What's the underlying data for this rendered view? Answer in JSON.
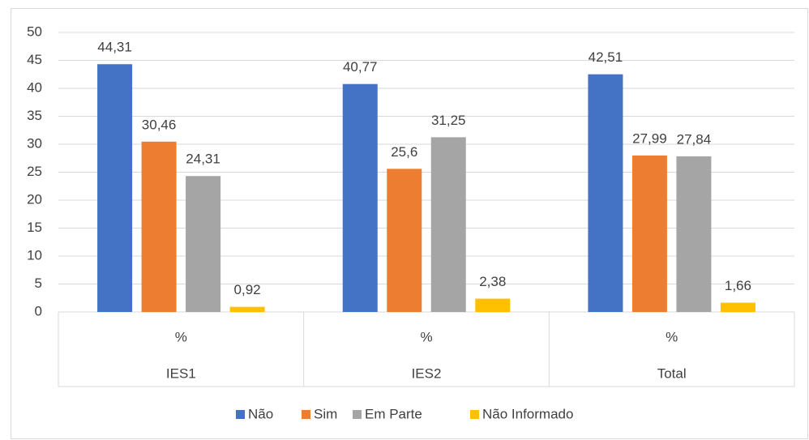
{
  "chart_data": {
    "type": "bar",
    "categories": [
      "IES1",
      "IES2",
      "Total"
    ],
    "subcategories": [
      "%",
      "%",
      "%"
    ],
    "series": [
      {
        "name": "Não",
        "color": "#4472c4",
        "values": [
          44.31,
          40.77,
          42.51
        ],
        "value_labels": [
          "44,31",
          "40,77",
          "42,51"
        ]
      },
      {
        "name": "Sim",
        "color": "#ed7d31",
        "values": [
          30.46,
          25.6,
          27.99
        ],
        "value_labels": [
          "30,46",
          "25,6",
          "27,99"
        ]
      },
      {
        "name": "Em Parte",
        "color": "#a5a5a5",
        "values": [
          24.31,
          31.25,
          27.84
        ],
        "value_labels": [
          "24,31",
          "31,25",
          "27,84"
        ]
      },
      {
        "name": "Não Informado",
        "color": "#ffc000",
        "values": [
          0.92,
          2.38,
          1.66
        ],
        "value_labels": [
          "0,92",
          "2,38",
          "1,66"
        ]
      }
    ],
    "ylim": [
      0,
      50
    ],
    "yticks": [
      0,
      5,
      10,
      15,
      20,
      25,
      30,
      35,
      40,
      45,
      50
    ],
    "grid": true,
    "legend": "bottom"
  }
}
